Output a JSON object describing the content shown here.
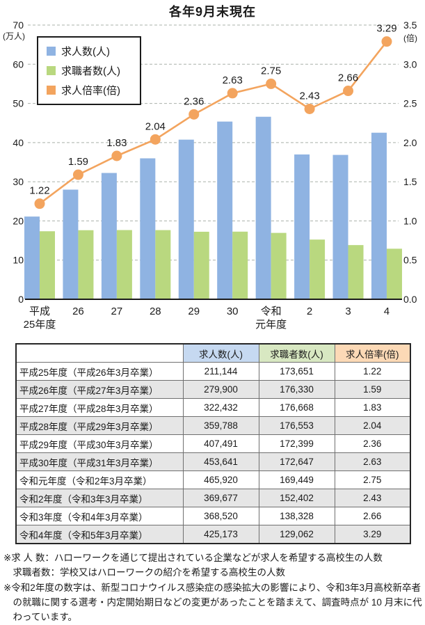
{
  "chart_data": {
    "type": "bar+line",
    "title": "各年9月末現在",
    "categories": [
      "平成25年度",
      "平成26年度",
      "平成27年度",
      "平成28年度",
      "平成29年度",
      "平成30年度",
      "令和元年度",
      "令和2年度",
      "令和3年度",
      "令和4年度"
    ],
    "x_tick_lines": [
      [
        "平成",
        "25年度"
      ],
      [
        "26"
      ],
      [
        "27"
      ],
      [
        "28"
      ],
      [
        "29"
      ],
      [
        "30"
      ],
      [
        "令和",
        "元年度"
      ],
      [
        "2"
      ],
      [
        "3"
      ],
      [
        "4"
      ]
    ],
    "series": [
      {
        "name": "求人数(人)",
        "type": "bar",
        "axis": "left",
        "color": "#8fb3e2",
        "values": [
          211144,
          279900,
          322432,
          359788,
          407491,
          453641,
          465920,
          369677,
          368520,
          425173
        ]
      },
      {
        "name": "求職者数(人)",
        "type": "bar",
        "axis": "left",
        "color": "#b9d87f",
        "values": [
          173651,
          176330,
          176668,
          176553,
          172399,
          172647,
          169449,
          152402,
          138328,
          129062
        ]
      },
      {
        "name": "求人倍率(倍)",
        "type": "line",
        "axis": "right",
        "color": "#f3a45e",
        "values": [
          1.22,
          1.59,
          1.83,
          2.04,
          2.36,
          2.63,
          2.75,
          2.43,
          2.66,
          3.29
        ]
      }
    ],
    "left_axis": {
      "label": "(万人)",
      "min": 0,
      "max": 70,
      "step": 10
    },
    "right_axis": {
      "label": "(倍)",
      "min": 0,
      "max": 3.5,
      "step": 0.5
    },
    "grid": "horizontal-dashed",
    "legend_position": "top-left",
    "legend": [
      {
        "label": "求人数(人)",
        "color": "#8fb3e2"
      },
      {
        "label": "求職者数(人)",
        "color": "#b9d87f"
      },
      {
        "label": "求人倍率(倍)",
        "color": "#f3a45e"
      }
    ]
  },
  "table": {
    "headers": [
      "",
      "求人数(人)",
      "求職者数(人)",
      "求人倍率(倍)"
    ],
    "header_colors": [
      "#ffffff",
      "#c6d9f1",
      "#d8e8c2",
      "#fcd9b6"
    ],
    "alt_row_color": "#e6e6e6",
    "rows": [
      {
        "label": "平成25年度（平成26年3月卒業）",
        "jobs": "211,144",
        "seekers": "173,651",
        "ratio": "1.22"
      },
      {
        "label": "平成26年度（平成27年3月卒業）",
        "jobs": "279,900",
        "seekers": "176,330",
        "ratio": "1.59"
      },
      {
        "label": "平成27年度（平成28年3月卒業）",
        "jobs": "322,432",
        "seekers": "176,668",
        "ratio": "1.83"
      },
      {
        "label": "平成28年度（平成29年3月卒業）",
        "jobs": "359,788",
        "seekers": "176,553",
        "ratio": "2.04"
      },
      {
        "label": "平成29年度（平成30年3月卒業）",
        "jobs": "407,491",
        "seekers": "172,399",
        "ratio": "2.36"
      },
      {
        "label": "平成30年度（平成31年3月卒業）",
        "jobs": "453,641",
        "seekers": "172,647",
        "ratio": "2.63"
      },
      {
        "label": "令和元年度（令和2年3月卒業）",
        "jobs": "465,920",
        "seekers": "169,449",
        "ratio": "2.75"
      },
      {
        "label": "令和2年度（令和3年3月卒業）",
        "jobs": "369,677",
        "seekers": "152,402",
        "ratio": "2.43"
      },
      {
        "label": "令和3年度（令和4年3月卒業）",
        "jobs": "368,520",
        "seekers": "138,328",
        "ratio": "2.66"
      },
      {
        "label": "令和4年度（令和5年3月卒業）",
        "jobs": "425,173",
        "seekers": "129,062",
        "ratio": "3.29"
      }
    ]
  },
  "footnotes": [
    "※求 人 数：ハローワークを通じて提出されている企業などが求人を希望する高校生の人数\n求職者数：学校又はハローワークの紹介を希望する高校生の人数",
    "※令和2年度の数字は、新型コロナウイルス感染症の感染拡大の影響により、令和3年3月高校新卒者の就職に関する選考・内定開始期日などの変更があったことを踏まえて、調査時点が 10 月末に代わっています。"
  ]
}
